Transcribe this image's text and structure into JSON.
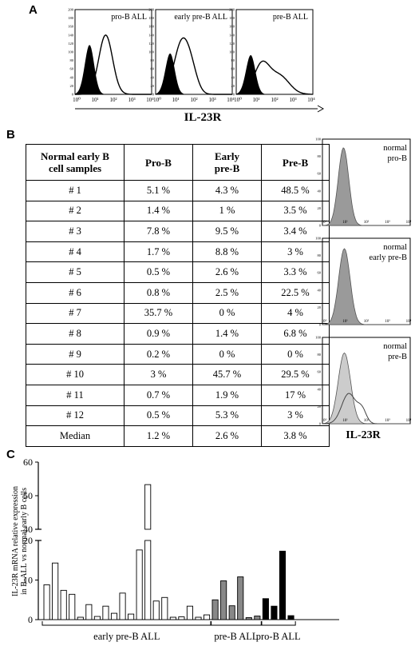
{
  "panels": {
    "a": "A",
    "b": "B",
    "c": "C"
  },
  "panel_a": {
    "histograms": [
      {
        "label": "pro-B ALL",
        "y_ticks": [
          "200",
          "180",
          "160",
          "140",
          "120",
          "100",
          "80",
          "60",
          "40",
          "20",
          "0"
        ]
      },
      {
        "label": "early pre-B ALL",
        "y_ticks": [
          "200",
          "180",
          "160",
          "140",
          "120",
          "100",
          "80",
          "60",
          "40",
          "20",
          "0"
        ]
      },
      {
        "label": "pre-B ALL",
        "y_ticks": [
          "200",
          "180",
          "160",
          "140",
          "120",
          "100",
          "80",
          "60",
          "40",
          "20",
          "0"
        ]
      }
    ],
    "x_ticks": [
      "10⁰",
      "10¹",
      "10²",
      "10³",
      "10⁴"
    ],
    "xlabel": "IL-23R"
  },
  "panel_b": {
    "table": {
      "headers": [
        "Normal early B cell samples",
        "Pro-B",
        "Early pre-B",
        "Pre-B"
      ],
      "header_lines": [
        [
          "Normal early B",
          "cell samples"
        ],
        [
          "Pro-B"
        ],
        [
          "Early",
          "pre-B"
        ],
        [
          "Pre-B"
        ]
      ],
      "rows": [
        [
          "# 1",
          "5.1 %",
          "4.3 %",
          "48.5 %"
        ],
        [
          "# 2",
          "1.4 %",
          "1 %",
          "3.5 %"
        ],
        [
          "# 3",
          "7.8 %",
          "9.5 %",
          "3.4 %"
        ],
        [
          "# 4",
          "1.7 %",
          "8.8 %",
          "3 %"
        ],
        [
          "# 5",
          "0.5 %",
          "2.6 %",
          "3.3 %"
        ],
        [
          "# 6",
          "0.8 %",
          "2.5 %",
          "22.5 %"
        ],
        [
          "# 7",
          "35.7 %",
          "0 %",
          "4 %"
        ],
        [
          "# 8",
          "0.9 %",
          "1.4 %",
          "6.8 %"
        ],
        [
          "# 9",
          "0.2 %",
          "0 %",
          "0 %"
        ],
        [
          "# 10",
          "3 %",
          "45.7 %",
          "29.5 %"
        ],
        [
          "# 11",
          "0.7 %",
          "1.9 %",
          "17 %"
        ],
        [
          "# 12",
          "0.5 %",
          "5.3 %",
          "3 %"
        ],
        [
          "Median",
          "1.2 %",
          "2.6 %",
          "3.8 %"
        ]
      ]
    },
    "histograms": [
      {
        "label_lines": [
          "normal",
          "pro-B"
        ],
        "y_ticks": [
          "100",
          "80",
          "60",
          "40",
          "20",
          "0"
        ]
      },
      {
        "label_lines": [
          "normal",
          "early pre-B"
        ],
        "y_ticks": [
          "100",
          "80",
          "60",
          "40",
          "20",
          "0"
        ]
      },
      {
        "label_lines": [
          "normal",
          "pre-B"
        ],
        "y_ticks": [
          "100",
          "80",
          "60",
          "40",
          "20",
          "0"
        ]
      }
    ],
    "x_ticks": [
      "10⁰",
      "10¹",
      "10²",
      "10³",
      "10⁴"
    ],
    "xlabel": "IL-23R"
  },
  "chart_data": {
    "type": "bar",
    "ylabel_lines": [
      "IL-23R mRNA relative expression",
      "in B-ALL vs normal early B cells"
    ],
    "ylim_upper": [
      40,
      60
    ],
    "ylim_lower": [
      0,
      20
    ],
    "y_ticks_upper": [
      "60",
      "50",
      "40"
    ],
    "y_ticks_lower": [
      "20",
      "10",
      "0"
    ],
    "groups": [
      {
        "name": "early pre-B ALL",
        "color": "#ffffff",
        "values": [
          8.8,
          14.3,
          7.4,
          6.4,
          0.6,
          3.8,
          0.8,
          3.4,
          1.6,
          6.7,
          1.4,
          17.6,
          53.3,
          4.7,
          5.6,
          0.6,
          0.7,
          3.4,
          0.6,
          1.2
        ]
      },
      {
        "name": "pre-B ALL",
        "color": "#888888",
        "values": [
          5.0,
          9.8,
          3.5,
          10.8,
          0.5,
          0.9
        ]
      },
      {
        "name": "pro-B ALL",
        "color": "#000000",
        "values": [
          5.3,
          3.4,
          17.3,
          1.0
        ]
      }
    ]
  }
}
